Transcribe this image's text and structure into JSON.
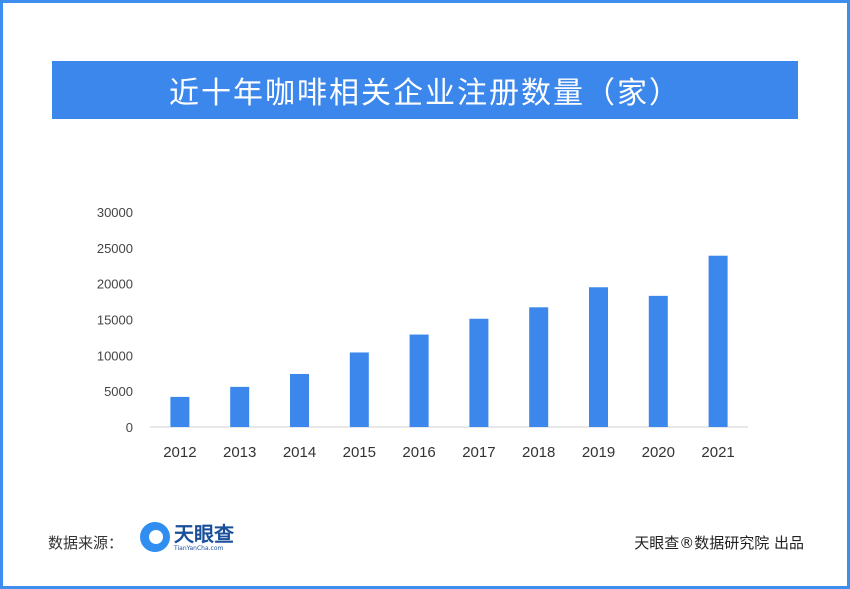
{
  "title": "近十年咖啡相关企业注册数量（家）",
  "footer": {
    "source_label": "数据来源：",
    "logo_cn": "天眼查",
    "logo_en": "TianYanCha.com",
    "credit": "天眼查®数据研究院 出品"
  },
  "colors": {
    "bar": "#3b87ec",
    "title_bg": "#3b87ec",
    "border": "#3e8ef0"
  },
  "chart_data": {
    "type": "bar",
    "title": "近十年咖啡相关企业注册数量（家）",
    "categories": [
      "2012",
      "2013",
      "2014",
      "2015",
      "2016",
      "2017",
      "2018",
      "2019",
      "2020",
      "2021"
    ],
    "values": [
      4200,
      5600,
      7400,
      10400,
      12900,
      15100,
      16700,
      19500,
      18300,
      23900
    ],
    "ylim": [
      0,
      30000
    ],
    "yticks": [
      "0",
      "5000",
      "10000",
      "15000",
      "20000",
      "25000",
      "30000"
    ],
    "grid": false,
    "xlabel": "",
    "ylabel": ""
  }
}
